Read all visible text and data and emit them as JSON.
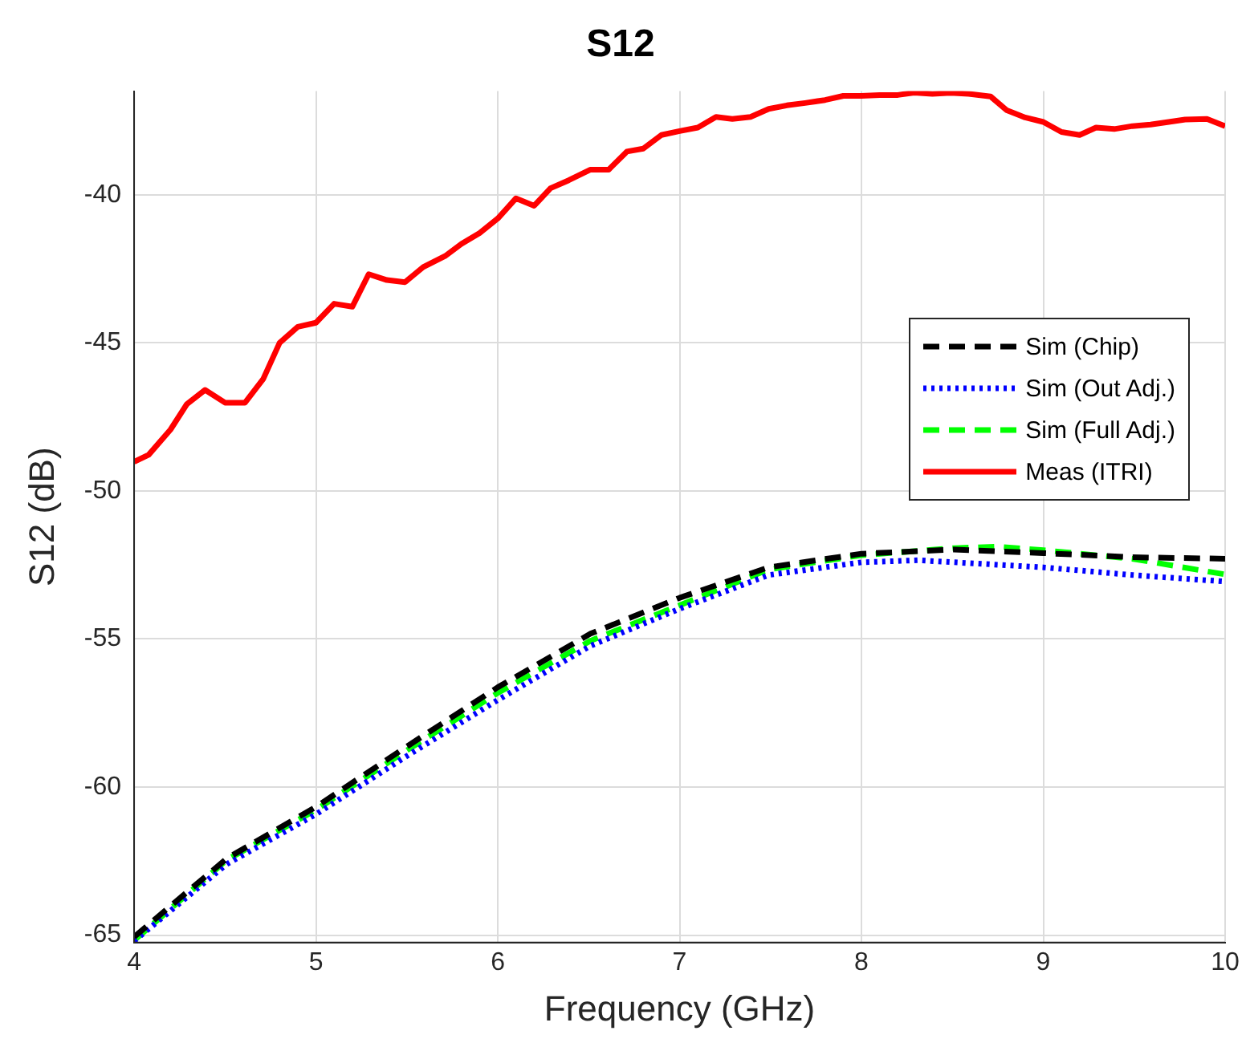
{
  "chart_data": {
    "type": "line",
    "title": "S12",
    "xlabel": "Frequency (GHz)",
    "ylabel": "S12 (dB)",
    "xlim": [
      4,
      10
    ],
    "xticks": [
      4,
      5,
      6,
      7,
      8,
      9,
      10
    ],
    "ylim": [
      -65.25,
      -36.5
    ],
    "yticks": [
      -65,
      -60,
      -55,
      -50,
      -45,
      -40
    ],
    "grid": true,
    "legend": "right",
    "marker": "none",
    "series": [
      {
        "name": "Sim (Chip)",
        "color": "#000000",
        "line_style": "dashed",
        "x": [
          4.0,
          4.51,
          5.0,
          5.49,
          6.0,
          6.51,
          7.0,
          7.49,
          8.0,
          8.51,
          9.0,
          9.49,
          10.0
        ],
        "values": [
          -65.06,
          -62.41,
          -60.67,
          -58.67,
          -56.63,
          -54.82,
          -53.61,
          -52.58,
          -52.12,
          -51.98,
          -52.1,
          -52.24,
          -52.29
        ]
      },
      {
        "name": "Sim (Out Adj.)",
        "color": "#0000ff",
        "line_style": "dotted",
        "x": [
          4.0,
          4.51,
          5.0,
          5.49,
          6.0,
          6.51,
          7.0,
          7.49,
          8.0,
          8.31,
          9.0,
          9.49,
          10.0
        ],
        "values": [
          -65.2,
          -62.6,
          -60.92,
          -58.99,
          -57.06,
          -55.23,
          -53.98,
          -52.84,
          -52.41,
          -52.34,
          -52.58,
          -52.84,
          -53.06
        ]
      },
      {
        "name": "Sim (Full Adj.)",
        "color": "#00ff00",
        "line_style": "dashed",
        "x": [
          4.0,
          4.51,
          5.0,
          5.49,
          6.0,
          6.51,
          7.0,
          7.49,
          8.0,
          8.51,
          8.75,
          9.0,
          9.49,
          10.0
        ],
        "values": [
          -65.18,
          -62.46,
          -60.77,
          -58.8,
          -56.82,
          -55.06,
          -53.86,
          -52.65,
          -52.17,
          -51.93,
          -51.88,
          -52.0,
          -52.29,
          -52.82
        ]
      },
      {
        "name": "Meas (ITRI)",
        "color": "#ff0000",
        "line_style": "solid",
        "x": [
          4.0,
          4.08,
          4.2,
          4.29,
          4.39,
          4.5,
          4.61,
          4.71,
          4.8,
          4.9,
          5.0,
          5.1,
          5.2,
          5.29,
          5.39,
          5.49,
          5.59,
          5.71,
          5.8,
          5.9,
          6.0,
          6.1,
          6.2,
          6.29,
          6.39,
          6.51,
          6.61,
          6.71,
          6.8,
          6.9,
          7.0,
          7.1,
          7.2,
          7.29,
          7.39,
          7.49,
          7.59,
          7.69,
          7.8,
          7.9,
          8.0,
          8.1,
          8.2,
          8.29,
          8.39,
          8.49,
          8.59,
          8.71,
          8.8,
          8.9,
          9.0,
          9.1,
          9.2,
          9.29,
          9.39,
          9.49,
          9.59,
          9.69,
          9.78,
          9.9,
          10.0
        ],
        "values": [
          -49.02,
          -48.78,
          -47.93,
          -47.07,
          -46.59,
          -47.02,
          -47.02,
          -46.22,
          -45.0,
          -44.46,
          -44.32,
          -43.68,
          -43.78,
          -42.68,
          -42.88,
          -42.95,
          -42.44,
          -42.07,
          -41.66,
          -41.29,
          -40.8,
          -40.12,
          -40.37,
          -39.78,
          -39.51,
          -39.15,
          -39.15,
          -38.54,
          -38.44,
          -37.98,
          -37.85,
          -37.73,
          -37.37,
          -37.44,
          -37.37,
          -37.1,
          -36.98,
          -36.9,
          -36.8,
          -36.66,
          -36.66,
          -36.63,
          -36.63,
          -36.55,
          -36.59,
          -36.56,
          -36.59,
          -36.68,
          -37.15,
          -37.39,
          -37.54,
          -37.88,
          -37.98,
          -37.73,
          -37.78,
          -37.68,
          -37.63,
          -37.54,
          -37.46,
          -37.44,
          -37.68
        ]
      }
    ]
  }
}
